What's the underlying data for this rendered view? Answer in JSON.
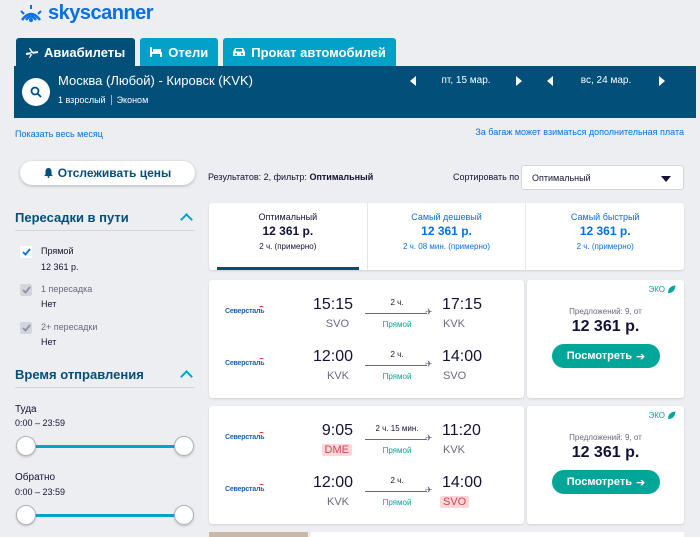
{
  "brand": {
    "name": "skyscanner"
  },
  "tabs": [
    {
      "label": "Авиабилеты",
      "icon": "plane-icon",
      "active": true
    },
    {
      "label": "Отели",
      "icon": "bed-icon",
      "active": false
    },
    {
      "label": "Прокат автомобилей",
      "icon": "car-icon",
      "active": false
    }
  ],
  "search": {
    "route": "Москва (Любой) - Кировск (KVK)",
    "passengers": "1 взрослый",
    "cabin": "Эконом",
    "depart_date": "пт, 15 мар.",
    "return_date": "вс, 24 мар."
  },
  "links": {
    "show_month": "Показать весь месяц",
    "baggage_notice": "За багаж может взиматься дополнительная плата"
  },
  "sidebar": {
    "track_button": "Отслеживать цены",
    "stops": {
      "title": "Пересадки в пути",
      "options": [
        {
          "label": "Прямой",
          "price": "12 361 р.",
          "checked": true,
          "enabled": true
        },
        {
          "label": "1 пересадка",
          "price": "Нет",
          "checked": true,
          "enabled": false
        },
        {
          "label": "2+ пересадки",
          "price": "Нет",
          "checked": true,
          "enabled": false
        }
      ]
    },
    "departure_time": {
      "title": "Время отправления",
      "outbound_label": "Туда",
      "outbound_range": "0:00 – 23:59",
      "return_label": "Обратно",
      "return_range": "0:00 – 23:59"
    }
  },
  "results": {
    "count_text": "Результатов: 2, фильтр:",
    "filter_name": "Оптимальный",
    "sort_label": "Сортировать по",
    "sort_value": "Оптимальный"
  },
  "summary": [
    {
      "title": "Оптимальный",
      "price": "12 361 р.",
      "duration": "2 ч. (примерно)",
      "active": true
    },
    {
      "title": "Самый дешевый",
      "price": "12 361 р.",
      "duration": "2 ч. 08 мин. (примерно)",
      "active": false
    },
    {
      "title": "Самый быстрый",
      "price": "12 361 р.",
      "duration": "2 ч. (примерно)",
      "active": false
    }
  ],
  "cards": [
    {
      "legs": [
        {
          "airline": "Северсталь",
          "dep_time": "15:15",
          "dep_code": "SVO",
          "duration": "2 ч.",
          "stops": "Прямой",
          "arr_time": "17:15",
          "arr_code": "KVK"
        },
        {
          "airline": "Северсталь",
          "dep_time": "12:00",
          "dep_code": "KVK",
          "duration": "2 ч.",
          "stops": "Прямой",
          "arr_time": "14:00",
          "arr_code": "SVO"
        }
      ],
      "eco": "ЭКО",
      "offers": "Предложений: 9, от",
      "price": "12 361 р.",
      "button": "Посмотреть"
    },
    {
      "legs": [
        {
          "airline": "Северсталь",
          "dep_time": "9:05",
          "dep_code": "DME",
          "duration": "2 ч. 15 мин.",
          "stops": "Прямой",
          "arr_time": "11:20",
          "arr_code": "KVK"
        },
        {
          "airline": "Северсталь",
          "dep_time": "12:00",
          "dep_code": "KVK",
          "duration": "2 ч.",
          "stops": "Прямой",
          "arr_time": "14:00",
          "arr_code": "SVO"
        }
      ],
      "eco": "ЭКО",
      "offers": "Предложений: 9, от",
      "price": "12 361 р.",
      "button": "Посмотреть"
    }
  ],
  "colors": {
    "brand_blue": "#0770e3",
    "header_dark": "#02507a",
    "tab_teal": "#02a2c8",
    "accent_teal": "#00a3cc",
    "cta_green": "#00a698",
    "airport_warning": "#fcd7d7"
  }
}
